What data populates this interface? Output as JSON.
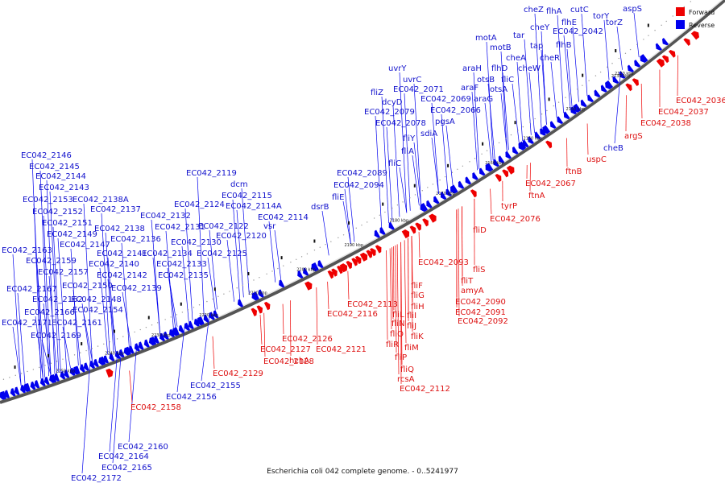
{
  "caption": "Escherichia coli 042 complete genome. - 0..5241977",
  "legend": {
    "forward_label": "Forward",
    "reverse_label": "Reverse",
    "forward_color": "#ee0000",
    "reverse_color": "#0000ee"
  },
  "ticks": [
    "2120 kbp",
    "2130 kbp",
    "2140 kbp",
    "2150 kbp",
    "2160 kbp",
    "2170 kbp",
    "2180 kbp",
    "2190 kbp",
    "2200 kbp",
    "2210 kbp",
    "2220 kbp",
    "2230 kbp",
    "2240 kbp",
    "2250 kbp"
  ],
  "forward_genes": [
    "EC042_2036",
    "EC042_2037",
    "EC042_2038",
    "argS",
    "uspC",
    "ftnB",
    "EC042_2067",
    "ftnA",
    "tyrP",
    "EC042_2076",
    "fliD",
    "fliS",
    "fliT",
    "amyA",
    "EC042_2090",
    "EC042_2091",
    "EC042_2092",
    "EC042_2093",
    "fliF",
    "fliG",
    "fliH",
    "fliI",
    "fliJ",
    "fliK",
    "fliL",
    "fliM",
    "fliN",
    "fliO",
    "fliP",
    "fliQ",
    "fliR",
    "rcsA",
    "EC042_2112",
    "EC042_2113",
    "EC042_2116",
    "EC042_2121",
    "hchA",
    "EC042_2126",
    "EC042_2127",
    "EC042_2128",
    "EC042_2129",
    "EC042_2158"
  ],
  "reverse_genes": [
    "aspS",
    "torZ",
    "torY",
    "cutC",
    "flhA",
    "cheZ",
    "flhE",
    "cheY",
    "EC042_2042",
    "flhB",
    "motA",
    "tar",
    "motB",
    "tap",
    "cheR",
    "cheA",
    "flhD",
    "araH",
    "cheW",
    "otsB",
    "fliC",
    "araF",
    "otsA",
    "uvrY",
    "uvrC",
    "EC042_2071",
    "EC042_2069",
    "fliZ",
    "araG",
    "dcyD",
    "EC042_2066",
    "EC042_2079",
    "EC042_2078",
    "pgsA",
    "sdiA",
    "fliY",
    "fliA",
    "fliC",
    "EC042_2089",
    "EC042_2094",
    "fliE",
    "dsrB",
    "cheB",
    "EC042_2119",
    "dcm",
    "EC042_2115",
    "EC042_2114A",
    "EC042_2124",
    "EC042_2132",
    "EC042_2114",
    "vsr",
    "EC042_2122",
    "EC042_2120",
    "EC042_2131",
    "EC042_2130",
    "EC042_2125",
    "EC042_2134",
    "EC042_2133",
    "EC042_2135",
    "EC042_2146",
    "EC042_2145",
    "EC042_2144",
    "EC042_2143",
    "EC042_2153",
    "EC042_2138A",
    "EC042_2152",
    "EC042_2137",
    "EC042_2151",
    "EC042_2138",
    "EC042_2149",
    "EC042_2136",
    "EC042_2147",
    "EC042_2163",
    "EC042_2141",
    "EC042_2159",
    "EC042_2140",
    "EC042_2157",
    "EC042_2142",
    "EC042_2167",
    "EC042_2150",
    "EC042_2139",
    "EC042_2162",
    "EC042_2148",
    "EC042_2166",
    "EC042_2154",
    "EC042_2171",
    "EC042_2161",
    "EC042_2169",
    "EC042_2155",
    "EC042_2156",
    "EC042_2160",
    "EC042_2164",
    "EC042_2165",
    "EC042_2172"
  ]
}
